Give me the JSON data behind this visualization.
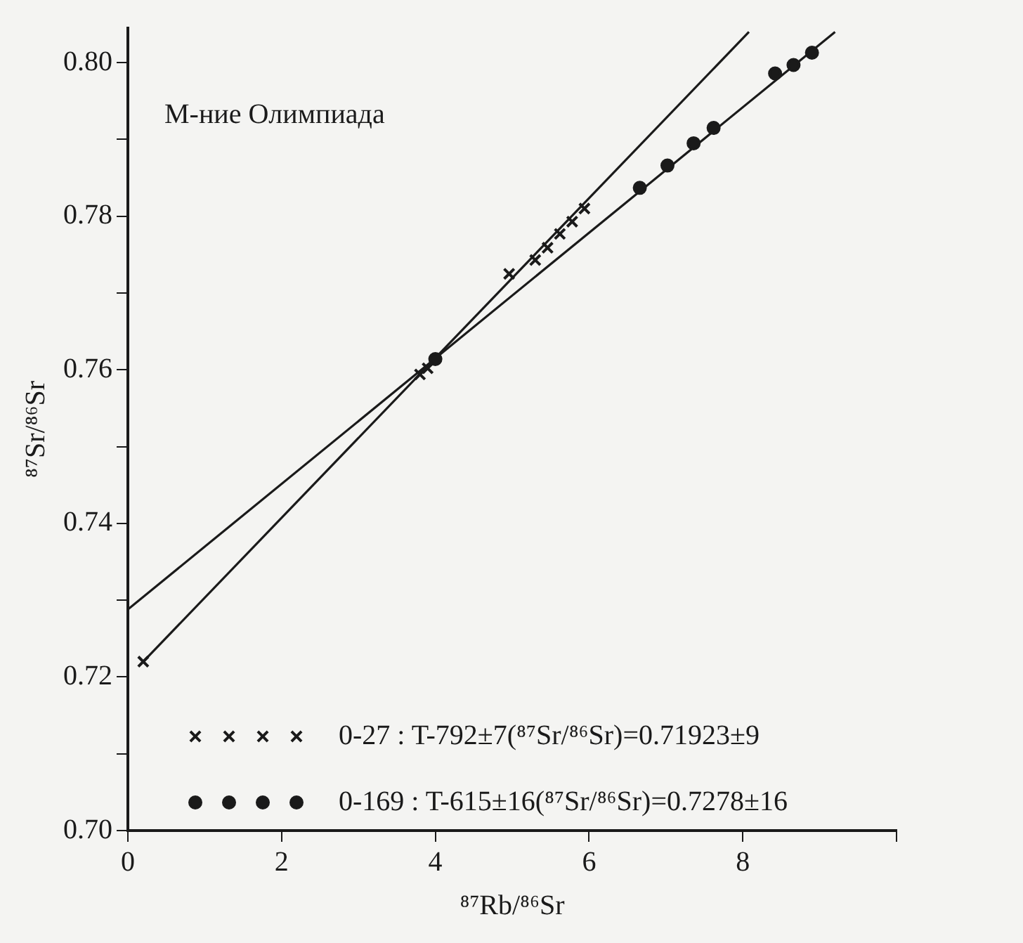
{
  "chart_data": {
    "type": "scatter",
    "xlabel": "⁸⁷Rb/⁸⁶Sr",
    "ylabel": "⁸⁷Sr/⁸⁶Sr",
    "annotations": [
      "М-ние Олимпиада"
    ],
    "xlim": [
      0,
      10
    ],
    "xticks": [
      0,
      2,
      4,
      6,
      8,
      {
        "value": 10,
        "label": null
      }
    ],
    "ylim": [
      0.7,
      0.8045
    ],
    "yticks": [
      {
        "value": 0.7,
        "label": "0.70"
      },
      {
        "value": 0.71,
        "label": null
      },
      0.72,
      {
        "value": 0.73,
        "label": null
      },
      0.74,
      {
        "value": 0.75,
        "label": null
      },
      0.76,
      {
        "value": 0.77,
        "label": null
      },
      0.78,
      {
        "value": 0.79,
        "label": null
      },
      {
        "value": 0.8,
        "label": "0.80"
      }
    ],
    "grid": false,
    "legend": "bottom",
    "series": [
      {
        "name": "0-27 : T-792±7(⁸⁷Sr/⁸⁶Sr)=0.71923±9",
        "marker": "cross",
        "color": "#1a1a1a",
        "x": [
          0.2,
          3.8,
          3.9,
          4.96,
          5.3,
          5.46,
          5.62,
          5.78,
          5.94
        ],
        "values": [
          0.722,
          0.7594,
          0.7602,
          0.7725,
          0.7743,
          0.7759,
          0.7777,
          0.7793,
          0.781
        ]
      },
      {
        "name": "0-169 : T-615±16(⁸⁷Sr/⁸⁶Sr)=0.7278±16",
        "marker": "circle",
        "color": "#1a1a1a",
        "x": [
          4.0,
          6.66,
          7.02,
          7.36,
          7.62,
          8.42,
          8.66,
          8.9
        ],
        "values": [
          0.7614,
          0.7837,
          0.7866,
          0.7895,
          0.7915,
          0.7986,
          0.7997,
          0.8013
        ]
      },
      {
        "type": "line",
        "marker": "none",
        "color": "#1a1a1a",
        "x": [
          0.2,
          8.08
        ],
        "values": [
          0.722,
          0.804
        ]
      },
      {
        "type": "line",
        "marker": "none",
        "color": "#1a1a1a",
        "x": [
          0,
          9.2
        ],
        "values": [
          0.7288,
          0.804
        ]
      }
    ]
  }
}
